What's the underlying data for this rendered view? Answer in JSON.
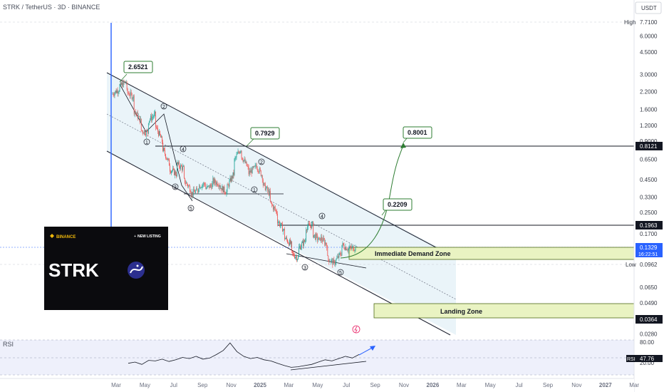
{
  "header": {
    "title": "STRK / TetherUS · 3D · BINANCE",
    "currency": "USDT"
  },
  "chart_data": {
    "type": "candlestick",
    "x_ticks": [
      "Mar",
      "May",
      "Jul",
      "Sep",
      "Nov",
      "2025",
      "Mar",
      "May",
      "Jul",
      "Sep",
      "Nov",
      "2026",
      "Mar",
      "May",
      "Jul",
      "Sep",
      "Nov",
      "2027",
      "Mar"
    ],
    "y_ticks": [
      "7.7100",
      "6.0000",
      "4.5000",
      "3.0000",
      "2.2000",
      "1.6000",
      "1.2000",
      "0.9000",
      "0.6500",
      "0.4500",
      "0.3300",
      "0.2500",
      "0.1700",
      "0.0650",
      "0.0490",
      "0.0280"
    ],
    "y_scale": "log",
    "price_path": [
      [
        2.1,
        2.3
      ],
      [
        2.4,
        2.65
      ],
      [
        2.2,
        2.0
      ],
      [
        1.6,
        1.3
      ],
      [
        1.1,
        1.05
      ],
      [
        1.3,
        1.45
      ],
      [
        1.2,
        0.9
      ],
      [
        0.8,
        0.6
      ],
      [
        0.55,
        0.5
      ],
      [
        0.6,
        0.55
      ],
      [
        0.45,
        0.38
      ],
      [
        0.35,
        0.37
      ],
      [
        0.4,
        0.42
      ],
      [
        0.38,
        0.41
      ],
      [
        0.44,
        0.42
      ],
      [
        0.4,
        0.36
      ],
      [
        0.38,
        0.5
      ],
      [
        0.62,
        0.79
      ],
      [
        0.7,
        0.55
      ],
      [
        0.5,
        0.56
      ],
      [
        0.6,
        0.48
      ],
      [
        0.42,
        0.35
      ],
      [
        0.3,
        0.25
      ],
      [
        0.22,
        0.18
      ],
      [
        0.16,
        0.14
      ],
      [
        0.12,
        0.11
      ],
      [
        0.13,
        0.15
      ],
      [
        0.19,
        0.2
      ],
      [
        0.17,
        0.15
      ],
      [
        0.16,
        0.14
      ],
      [
        0.11,
        0.1
      ],
      [
        0.1,
        0.12
      ],
      [
        0.14,
        0.13
      ],
      [
        0.13,
        0.1329
      ]
    ],
    "current_price": "0.1329",
    "countdown": "16:22:51",
    "levels": [
      {
        "label": "High",
        "value": "7.7100"
      },
      {
        "label": "",
        "value": "0.8121"
      },
      {
        "label": "",
        "value": "0.1963"
      },
      {
        "label": "Low",
        "value": "0.0962"
      },
      {
        "label": "",
        "value": "0.0364"
      }
    ],
    "callouts": [
      "2.6521",
      "0.7929",
      "0.8001",
      "0.2209"
    ],
    "wave_labels": [
      "1",
      "2",
      "3",
      "4",
      "5"
    ],
    "zones": [
      {
        "label": "Immediate Demand Zone"
      },
      {
        "label": "Landing Zone"
      }
    ],
    "rsi": {
      "label": "RSI",
      "value": "47.76",
      "ticks": [
        "80.00",
        "20.00"
      ],
      "path": [
        40,
        42,
        38,
        45,
        44,
        47,
        43,
        46,
        50,
        48,
        52,
        47,
        49,
        55,
        62,
        75,
        60,
        52,
        48,
        50,
        46,
        44,
        40,
        36,
        33,
        34,
        36,
        38,
        42,
        46,
        44,
        48,
        52,
        49,
        55
      ]
    },
    "promo": {
      "exchange": "BINANCE",
      "badge": "NEW LISTING",
      "ticker": "STRK"
    },
    "colors": {
      "up": "#26a69a",
      "down": "#ef5350",
      "channel": "#1e2230",
      "zone": "#e9f3c2",
      "blue": "#2962ff"
    }
  }
}
